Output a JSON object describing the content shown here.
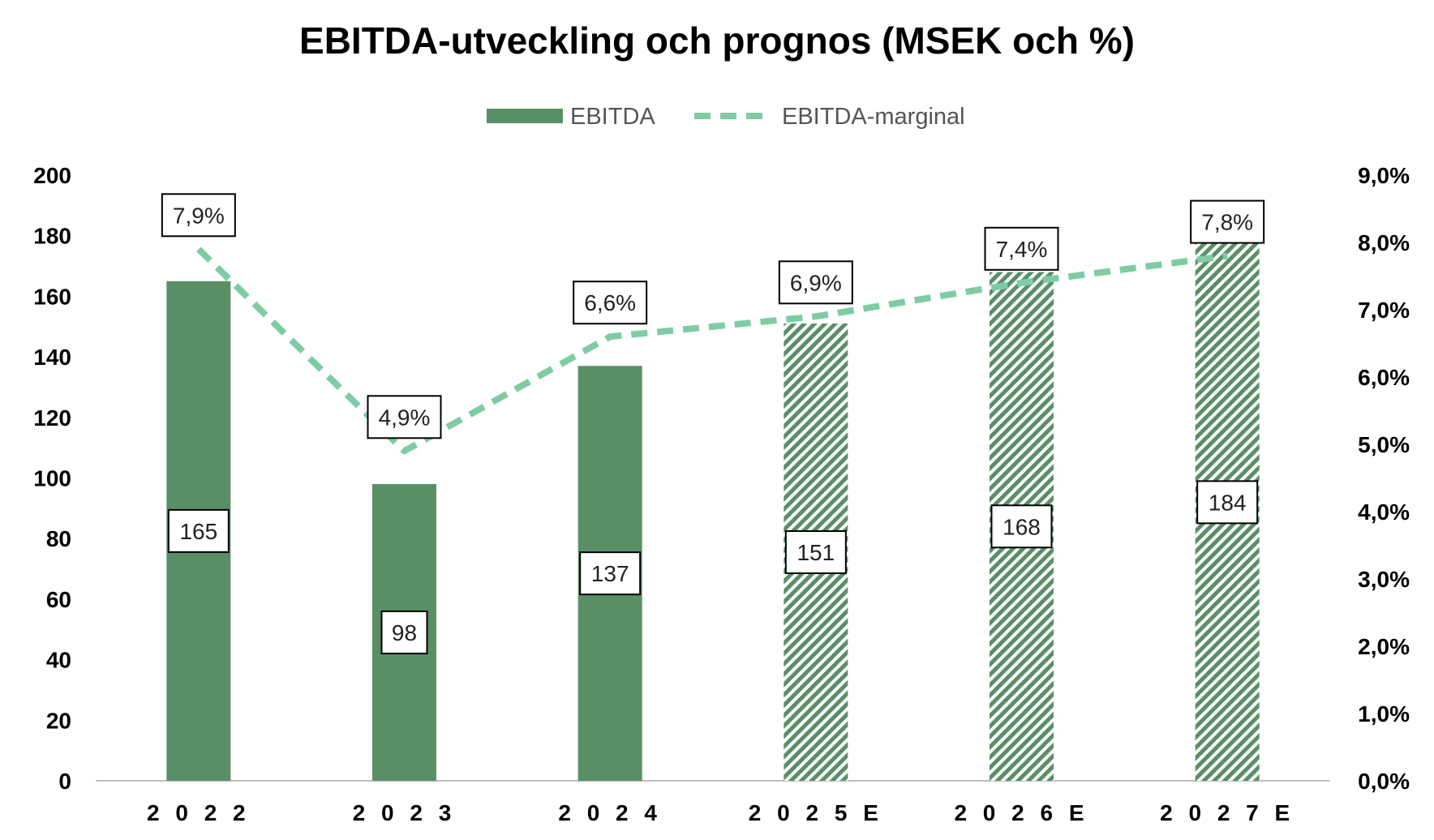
{
  "chart_data": {
    "type": "bar",
    "title": "EBITDA-utveckling och prognos (MSEK och %)",
    "categories": [
      "2022",
      "2023",
      "2024",
      "2025E",
      "2026E",
      "2027E"
    ],
    "category_labels": [
      "2 0 2 2",
      "2 0 2 3",
      "2 0 2 4",
      "2 0 2 5 E",
      "2 0 2 6 E",
      "2 0 2 7 E"
    ],
    "forecast": [
      false,
      false,
      false,
      true,
      true,
      true
    ],
    "series": [
      {
        "name": "EBITDA",
        "type": "bar",
        "axis": "left",
        "values": [
          165,
          98,
          137,
          151,
          168,
          184
        ],
        "labels": [
          "165",
          "98",
          "137",
          "151",
          "168",
          "184"
        ],
        "color": "#5a8f66"
      },
      {
        "name": "EBITDA-marginal",
        "type": "line",
        "style": "dashed",
        "axis": "right",
        "values": [
          7.9,
          4.9,
          6.6,
          6.9,
          7.4,
          7.8
        ],
        "labels": [
          "7,9%",
          "4,9%",
          "6,6%",
          "6,9%",
          "7,4%",
          "7,8%"
        ],
        "color": "#7fcca4"
      }
    ],
    "y_left": {
      "min": 0,
      "max": 200,
      "step": 20,
      "tick_labels": [
        "0",
        "20",
        "40",
        "60",
        "80",
        "100",
        "120",
        "140",
        "160",
        "180",
        "200"
      ]
    },
    "y_right": {
      "min": 0,
      "max": 9,
      "step": 1,
      "tick_labels": [
        "0,0%",
        "1,0%",
        "2,0%",
        "3,0%",
        "4,0%",
        "5,0%",
        "6,0%",
        "7,0%",
        "8,0%",
        "9,0%"
      ]
    },
    "legend": {
      "position": "top-center",
      "entries": [
        "EBITDA",
        "EBITDA-marginal"
      ]
    },
    "grid": false
  }
}
